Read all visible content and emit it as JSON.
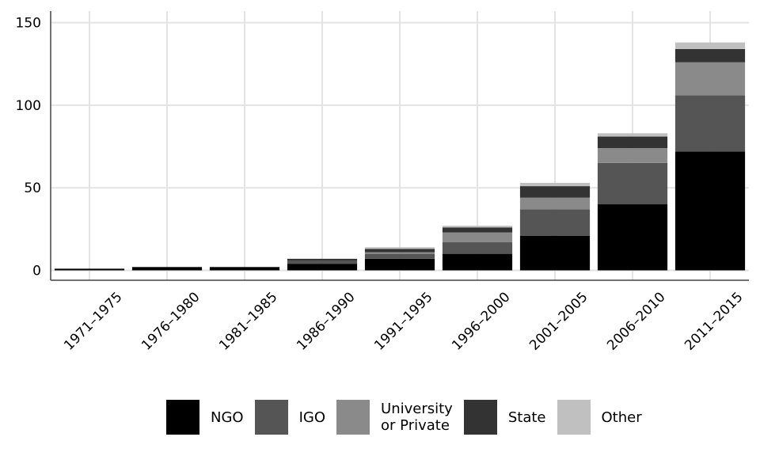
{
  "chart_data": {
    "type": "bar",
    "stacked": true,
    "title": "",
    "xlabel": "",
    "ylabel": "",
    "categories": [
      "1971–1975",
      "1976–1980",
      "1981–1985",
      "1986–1990",
      "1991–1995",
      "1996–2000",
      "2001–2005",
      "2006–2010",
      "2011–2015"
    ],
    "series": [
      {
        "name": "NGO",
        "color": "#000000",
        "values": [
          1,
          2,
          2,
          4,
          7,
          10,
          21,
          40,
          72
        ]
      },
      {
        "name": "IGO",
        "color": "#555555",
        "values": [
          0,
          0,
          0,
          2,
          3,
          7,
          16,
          25,
          34
        ]
      },
      {
        "name": "University or Private",
        "color": "#8a8a8a",
        "values": [
          0,
          0,
          0,
          0,
          1,
          6,
          7,
          9,
          20
        ]
      },
      {
        "name": "State",
        "color": "#333333",
        "values": [
          0,
          0,
          0,
          1,
          2,
          3,
          7,
          7,
          8
        ]
      },
      {
        "name": "Other",
        "color": "#c0c0c0",
        "values": [
          0,
          0,
          0,
          0,
          1,
          1,
          2,
          2,
          4
        ]
      }
    ],
    "ylim": [
      -6,
      157
    ],
    "yticks": [
      0,
      50,
      100,
      150
    ],
    "ytick_labels": [
      "0",
      "50",
      "100",
      "150"
    ],
    "grid": true,
    "legend_position": "bottom"
  },
  "legend": {
    "items": [
      {
        "label": "NGO",
        "color": "#000000"
      },
      {
        "label": "IGO",
        "color": "#555555"
      },
      {
        "label": "University\nor Private",
        "color": "#8a8a8a"
      },
      {
        "label": "State",
        "color": "#333333"
      },
      {
        "label": "Other",
        "color": "#c0c0c0"
      }
    ]
  }
}
